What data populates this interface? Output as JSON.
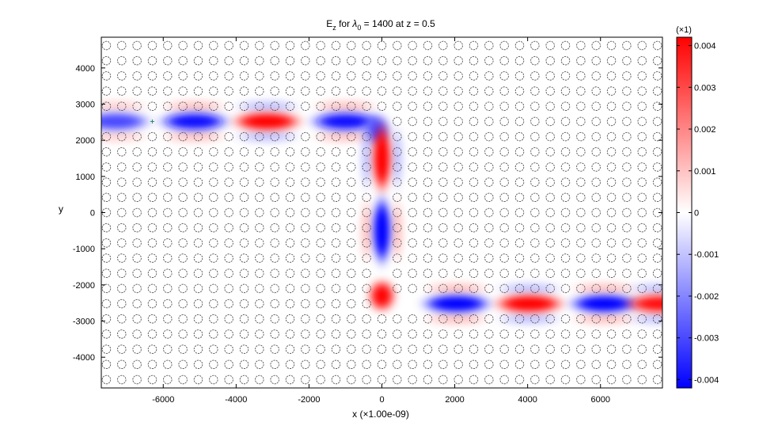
{
  "chart_data": {
    "type": "heatmap",
    "title": {
      "prefix": "E",
      "sub1": "z",
      "mid": " for ",
      "lambda": "λ",
      "sub2": "0",
      "suffix": " = 1400  at  z = 0.5"
    },
    "xlabel": "x  (×1.00e-09)",
    "ylabel": "y",
    "xlim": [
      -7700,
      7700
    ],
    "ylim": [
      -4850,
      4850
    ],
    "x_ticks": [
      -6000,
      -4000,
      -2000,
      0,
      2000,
      4000,
      6000
    ],
    "x_tick_labels": [
      "-6000",
      "-4000",
      "-2000",
      "0",
      "2000",
      "4000",
      "6000"
    ],
    "y_ticks": [
      4000,
      3000,
      2000,
      1000,
      0,
      -1000,
      -2000,
      -3000,
      -4000
    ],
    "y_tick_labels": [
      "4000",
      "3000",
      "2000",
      "1000",
      "0",
      "-1000",
      "-2000",
      "-3000",
      "-4000"
    ],
    "colorbar": {
      "multiplier_label": "(×1)",
      "range": [
        -0.0042,
        0.0042
      ],
      "ticks": [
        0.004,
        0.003,
        0.002,
        0.001,
        0,
        -0.001,
        -0.002,
        -0.003,
        -0.004
      ],
      "tick_labels": [
        "0.004",
        "0.003",
        "0.002",
        "0.001",
        "0",
        "-0.001",
        "-0.002",
        "-0.003",
        "-0.004"
      ],
      "colormap": {
        "positive": "#ff0000",
        "zero": "#ffffff",
        "negative": "#0000ff"
      }
    },
    "lattice": {
      "pitch": 420,
      "x_range": [
        -7560,
        7560
      ],
      "y_range": [
        -4620,
        4620
      ],
      "rod_radius": 115,
      "rod_color": "#555555",
      "defect_rows_y": [
        2520,
        -2520
      ],
      "defect_column_x": 0,
      "waveguide_rows": {
        "upper": {
          "y": 2520,
          "x_max": -420
        },
        "lower": {
          "y": -2520,
          "x_min": 420
        }
      },
      "waveguide_column": {
        "x": 0,
        "y_range": [
          -2520,
          2520
        ]
      }
    },
    "field_lobes": [
      {
        "x": -7300,
        "y": 2520,
        "value": -0.003,
        "orient": "h"
      },
      {
        "x": -5150,
        "y": 2520,
        "value": -0.004,
        "orient": "h"
      },
      {
        "x": -3150,
        "y": 2520,
        "value": 0.0042,
        "orient": "h"
      },
      {
        "x": -1000,
        "y": 2520,
        "value": -0.004,
        "orient": "h"
      },
      {
        "x": -150,
        "y": 2280,
        "value": -0.003,
        "orient": "d"
      },
      {
        "x": 0,
        "y": 1500,
        "value": 0.0042,
        "orient": "v"
      },
      {
        "x": 0,
        "y": -500,
        "value": -0.0042,
        "orient": "v"
      },
      {
        "x": 0,
        "y": -2300,
        "value": 0.0042,
        "orient": "d"
      },
      {
        "x": 2050,
        "y": -2520,
        "value": -0.0042,
        "orient": "h"
      },
      {
        "x": 4050,
        "y": -2520,
        "value": 0.0042,
        "orient": "h"
      },
      {
        "x": 6100,
        "y": -2520,
        "value": -0.0042,
        "orient": "h"
      },
      {
        "x": 7650,
        "y": -2520,
        "value": 0.004,
        "orient": "h"
      }
    ],
    "source_marker": {
      "x": -6300,
      "y": 2520,
      "color": "#2e8b57"
    },
    "grid": false,
    "legend": "colorbar-right"
  }
}
